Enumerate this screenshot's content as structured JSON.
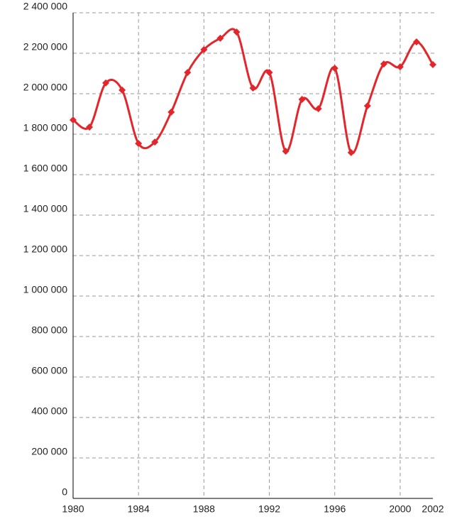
{
  "chart_data": {
    "type": "line",
    "x": [
      1980,
      1981,
      1982,
      1983,
      1984,
      1985,
      1986,
      1987,
      1988,
      1989,
      1990,
      1991,
      1992,
      1993,
      1994,
      1995,
      1996,
      1997,
      1998,
      1999,
      2000,
      2001,
      2002
    ],
    "series": [
      {
        "color": "#e3262b",
        "values": [
          1870000,
          1835000,
          2053000,
          2018000,
          1754000,
          1761000,
          1909000,
          2105000,
          2218000,
          2274000,
          2305000,
          2028000,
          2105000,
          1716000,
          1972000,
          1926000,
          2126000,
          1709000,
          1940000,
          2147000,
          2133000,
          2256000,
          2144000
        ]
      }
    ],
    "xlim": [
      1980,
      2002
    ],
    "xticks": [
      1980,
      1984,
      1988,
      1992,
      1996,
      2000,
      2002
    ],
    "ylim": [
      0,
      2400000
    ],
    "yticks": [
      0,
      {
        "value": 200000,
        "label": "200 000"
      },
      {
        "value": 400000,
        "label": "400 000"
      },
      {
        "value": 600000,
        "label": "600 000"
      },
      {
        "value": 800000,
        "label": "800 000"
      },
      {
        "value": 1000000,
        "label": "1 000 000"
      },
      {
        "value": 1200000,
        "label": "1 200 000"
      },
      {
        "value": 1400000,
        "label": "1 400 000"
      },
      {
        "value": 1600000,
        "label": "1 600 000"
      },
      {
        "value": 1800000,
        "label": "1 800 000"
      },
      {
        "value": 2000000,
        "label": "2 000 000"
      },
      {
        "value": 2200000,
        "label": "2 200 000"
      },
      {
        "value": 2400000,
        "label": "2 400 000"
      }
    ],
    "grid": true
  }
}
